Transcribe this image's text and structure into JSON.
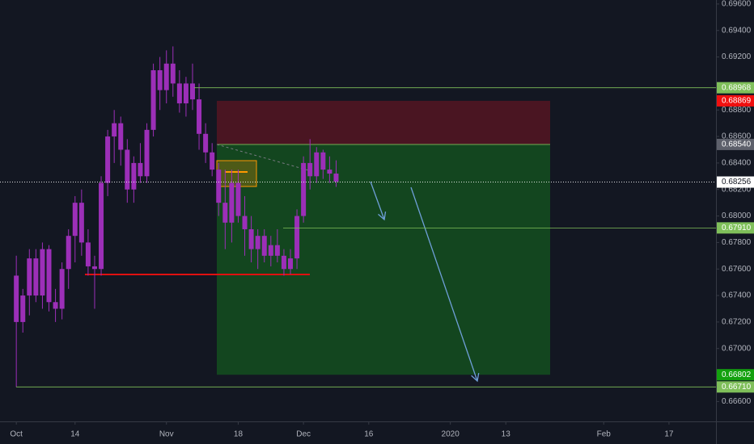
{
  "chart_data": {
    "type": "candlestick",
    "candle_color": "#9c2fb8",
    "background": "#131722",
    "text_color": "#b2b5be",
    "xlim": [
      -2.5,
      107.2
    ],
    "ylim": [
      0.6645,
      0.6963
    ],
    "xticks": [
      {
        "value": 0,
        "label": "Oct"
      },
      {
        "value": 9,
        "label": "14"
      },
      {
        "value": 23,
        "label": "Nov"
      },
      {
        "value": 34,
        "label": "18"
      },
      {
        "value": 44,
        "label": "Dec"
      },
      {
        "value": 54,
        "label": "16"
      },
      {
        "value": 66.5,
        "label": "2020"
      },
      {
        "value": 75,
        "label": "13"
      },
      {
        "value": 90,
        "label": "Feb"
      },
      {
        "value": 100,
        "label": "17"
      }
    ],
    "yticks": [
      {
        "value": 0.696,
        "label": "0.69600"
      },
      {
        "value": 0.694,
        "label": "0.69400"
      },
      {
        "value": 0.692,
        "label": "0.69200"
      },
      {
        "value": 0.688,
        "label": "0.68800"
      },
      {
        "value": 0.686,
        "label": "0.68600"
      },
      {
        "value": 0.684,
        "label": "0.68400"
      },
      {
        "value": 0.682,
        "label": "0.68200"
      },
      {
        "value": 0.68,
        "label": "0.68000"
      },
      {
        "value": 0.678,
        "label": "0.67800"
      },
      {
        "value": 0.676,
        "label": "0.67600"
      },
      {
        "value": 0.674,
        "label": "0.67400"
      },
      {
        "value": 0.672,
        "label": "0.67200"
      },
      {
        "value": 0.67,
        "label": "0.67000"
      },
      {
        "value": 0.666,
        "label": "0.66600"
      }
    ],
    "price_lines": [
      {
        "value": 0.68968,
        "color": "#7fbf5a"
      },
      {
        "value": 0.68869,
        "color": "#f00f0f"
      },
      {
        "value": 0.6854,
        "label": "0.68540",
        "color": "#5d606b"
      },
      {
        "value": 0.68256,
        "color": "#ffffff"
      },
      {
        "value": 0.6791,
        "label": "0.67910",
        "color": "#7fbf5a"
      },
      {
        "value": 0.66802,
        "color": "#13a10e"
      },
      {
        "value": 0.6671,
        "label": "0.66710",
        "color": "#7fbf5a"
      }
    ],
    "candles": [
      [
        0.6755,
        0.677,
        0.6671,
        0.672
      ],
      [
        0.672,
        0.6745,
        0.6712,
        0.674
      ],
      [
        0.674,
        0.6775,
        0.6725,
        0.6768
      ],
      [
        0.6768,
        0.6775,
        0.6735,
        0.674
      ],
      [
        0.674,
        0.678,
        0.673,
        0.6775
      ],
      [
        0.6775,
        0.6778,
        0.6728,
        0.6735
      ],
      [
        0.6735,
        0.6745,
        0.672,
        0.673
      ],
      [
        0.673,
        0.6765,
        0.6722,
        0.676
      ],
      [
        0.676,
        0.679,
        0.6745,
        0.6785
      ],
      [
        0.6785,
        0.6815,
        0.6765,
        0.681
      ],
      [
        0.681,
        0.682,
        0.677,
        0.678
      ],
      [
        0.678,
        0.679,
        0.6755,
        0.6762
      ],
      [
        0.6762,
        0.677,
        0.673,
        0.676
      ],
      [
        0.676,
        0.683,
        0.6755,
        0.6825
      ],
      [
        0.6825,
        0.6865,
        0.6815,
        0.686
      ],
      [
        0.686,
        0.688,
        0.684,
        0.687
      ],
      [
        0.687,
        0.6875,
        0.6838,
        0.685
      ],
      [
        0.685,
        0.6858,
        0.681,
        0.682
      ],
      [
        0.682,
        0.6845,
        0.681,
        0.684
      ],
      [
        0.684,
        0.6855,
        0.6825,
        0.683
      ],
      [
        0.683,
        0.687,
        0.6825,
        0.6865
      ],
      [
        0.6865,
        0.6915,
        0.686,
        0.691
      ],
      [
        0.691,
        0.692,
        0.688,
        0.6895
      ],
      [
        0.6895,
        0.6925,
        0.6885,
        0.6915
      ],
      [
        0.6915,
        0.6928,
        0.689,
        0.69
      ],
      [
        0.69,
        0.691,
        0.6878,
        0.6885
      ],
      [
        0.6885,
        0.6905,
        0.6875,
        0.69
      ],
      [
        0.69,
        0.6915,
        0.688,
        0.6888
      ],
      [
        0.6888,
        0.69,
        0.685,
        0.6862
      ],
      [
        0.6862,
        0.687,
        0.684,
        0.6848
      ],
      [
        0.6848,
        0.6855,
        0.683,
        0.6835
      ],
      [
        0.6835,
        0.684,
        0.68,
        0.681
      ],
      [
        0.681,
        0.6835,
        0.6775,
        0.6795
      ],
      [
        0.6795,
        0.6835,
        0.678,
        0.6825
      ],
      [
        0.6825,
        0.6835,
        0.6795,
        0.68
      ],
      [
        0.68,
        0.6815,
        0.677,
        0.679
      ],
      [
        0.679,
        0.68,
        0.6765,
        0.6775
      ],
      [
        0.6775,
        0.679,
        0.676,
        0.6785
      ],
      [
        0.6785,
        0.679,
        0.6765,
        0.677
      ],
      [
        0.677,
        0.6785,
        0.6762,
        0.6778
      ],
      [
        0.6778,
        0.679,
        0.6765,
        0.677
      ],
      [
        0.677,
        0.6775,
        0.6755,
        0.676
      ],
      [
        0.676,
        0.6775,
        0.6756,
        0.6768
      ],
      [
        0.6768,
        0.6805,
        0.676,
        0.68
      ],
      [
        0.68,
        0.6845,
        0.6795,
        0.684
      ],
      [
        0.684,
        0.6858,
        0.682,
        0.683
      ],
      [
        0.683,
        0.6852,
        0.6825,
        0.6848
      ],
      [
        0.6848,
        0.685,
        0.6828,
        0.6835
      ],
      [
        0.6835,
        0.6845,
        0.6825,
        0.6832
      ],
      [
        0.6832,
        0.6842,
        0.6822,
        0.6826
      ]
    ]
  }
}
